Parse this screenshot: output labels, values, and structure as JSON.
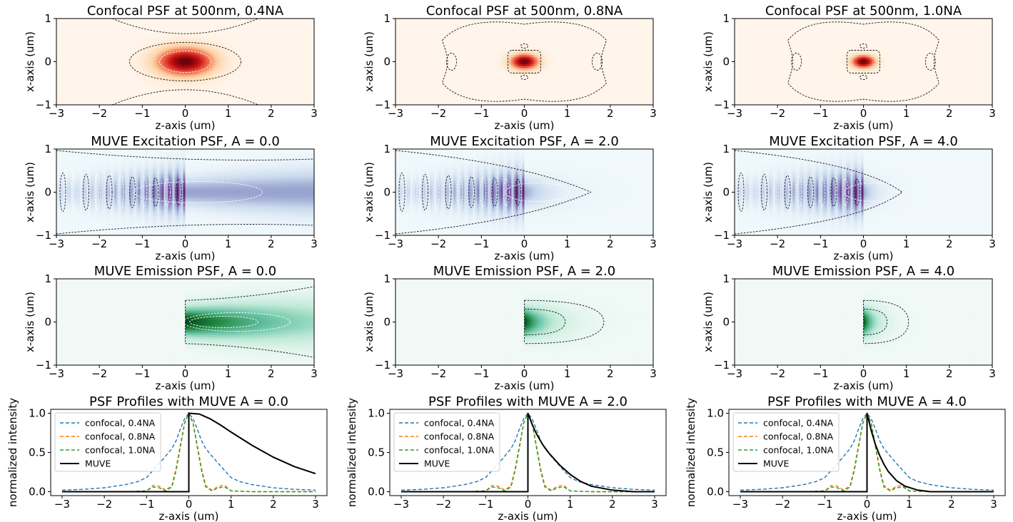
{
  "figure": {
    "rows": [
      {
        "kind": "heatmap",
        "colormap": "reds",
        "titles": [
          "Confocal PSF at 500nm, 0.4NA",
          "Confocal PSF at 500nm, 0.8NA",
          "Confocal PSF at 500nm, 1.0NA"
        ],
        "xlabel": "z-axis (um)",
        "ylabel": "x-axis (um)"
      },
      {
        "kind": "heatmap",
        "colormap": "purples",
        "titles": [
          "MUVE Excitation PSF, A = 0.0",
          "MUVE Excitation PSF, A = 2.0",
          "MUVE Excitation PSF, A = 4.0"
        ],
        "xlabel": "z-axis (um)",
        "ylabel": "x-axis (um)"
      },
      {
        "kind": "heatmap",
        "colormap": "greens",
        "titles": [
          "MUVE Emission PSF, A = 0.0",
          "MUVE Emission PSF, A = 2.0",
          "MUVE Emission PSF, A = 4.0"
        ],
        "xlabel": "z-axis (um)",
        "ylabel": "x-axis (um)"
      },
      {
        "kind": "line",
        "titles": [
          "PSF Profiles with MUVE A = 0.0",
          "PSF Profiles with MUVE A = 2.0",
          "PSF Profiles with MUVE A = 4.0"
        ],
        "xlabel": "z-axis (um)",
        "ylabel": "normalized intensity"
      }
    ],
    "colors": {
      "confocal_04": "#1f77b4",
      "confocal_08": "#ff7f0e",
      "confocal_10": "#2ca02c",
      "muve": "#000000"
    }
  },
  "chart_data": [
    {
      "type": "heatmap",
      "panel": "r0c0",
      "title": "Confocal PSF at 500nm, 0.4NA",
      "xlabel": "z-axis (um)",
      "ylabel": "x-axis (um)",
      "xlim": [
        -3,
        3
      ],
      "ylim": [
        -1,
        1
      ],
      "xticks": [
        -3,
        -2,
        -1,
        0,
        1,
        2,
        3
      ],
      "yticks": [
        -1,
        0,
        1
      ],
      "peak": [
        0,
        0
      ],
      "colormap": "reds"
    },
    {
      "type": "heatmap",
      "panel": "r0c1",
      "title": "Confocal PSF at 500nm, 0.8NA",
      "xlabel": "z-axis (um)",
      "ylabel": "x-axis (um)",
      "xlim": [
        -3,
        3
      ],
      "ylim": [
        -1,
        1
      ],
      "xticks": [
        -3,
        -2,
        -1,
        0,
        1,
        2,
        3
      ],
      "yticks": [
        -1,
        0,
        1
      ],
      "peak": [
        0,
        0
      ],
      "colormap": "reds"
    },
    {
      "type": "heatmap",
      "panel": "r0c2",
      "title": "Confocal PSF at 500nm, 1.0NA",
      "xlabel": "z-axis (um)",
      "ylabel": "x-axis (um)",
      "xlim": [
        -3,
        3
      ],
      "ylim": [
        -1,
        1
      ],
      "xticks": [
        -3,
        -2,
        -1,
        0,
        1,
        2,
        3
      ],
      "yticks": [
        -1,
        0,
        1
      ],
      "peak": [
        0,
        0
      ],
      "colormap": "reds"
    },
    {
      "type": "heatmap",
      "panel": "r1c0",
      "title": "MUVE Excitation PSF, A = 0.0",
      "xlabel": "z-axis (um)",
      "ylabel": "x-axis (um)",
      "xlim": [
        -3,
        3
      ],
      "ylim": [
        -1,
        1
      ],
      "xticks": [
        -3,
        -2,
        -1,
        0,
        1,
        2,
        3
      ],
      "yticks": [
        -1,
        0,
        1
      ],
      "A": 0.0,
      "colormap": "purples"
    },
    {
      "type": "heatmap",
      "panel": "r1c1",
      "title": "MUVE Excitation PSF, A = 2.0",
      "xlabel": "z-axis (um)",
      "ylabel": "x-axis (um)",
      "xlim": [
        -3,
        3
      ],
      "ylim": [
        -1,
        1
      ],
      "xticks": [
        -3,
        -2,
        -1,
        0,
        1,
        2,
        3
      ],
      "yticks": [
        -1,
        0,
        1
      ],
      "A": 2.0,
      "colormap": "purples"
    },
    {
      "type": "heatmap",
      "panel": "r1c2",
      "title": "MUVE Excitation PSF, A = 4.0",
      "xlabel": "z-axis (um)",
      "ylabel": "x-axis (um)",
      "xlim": [
        -3,
        3
      ],
      "ylim": [
        -1,
        1
      ],
      "xticks": [
        -3,
        -2,
        -1,
        0,
        1,
        2,
        3
      ],
      "yticks": [
        -1,
        0,
        1
      ],
      "A": 4.0,
      "colormap": "purples"
    },
    {
      "type": "heatmap",
      "panel": "r2c0",
      "title": "MUVE Emission PSF, A = 0.0",
      "xlabel": "z-axis (um)",
      "ylabel": "x-axis (um)",
      "xlim": [
        -3,
        3
      ],
      "ylim": [
        -1,
        1
      ],
      "xticks": [
        -3,
        -2,
        -1,
        0,
        1,
        2,
        3
      ],
      "yticks": [
        -1,
        0,
        1
      ],
      "A": 0.0,
      "colormap": "greens"
    },
    {
      "type": "heatmap",
      "panel": "r2c1",
      "title": "MUVE Emission PSF, A = 2.0",
      "xlabel": "z-axis (um)",
      "ylabel": "x-axis (um)",
      "xlim": [
        -3,
        3
      ],
      "ylim": [
        -1,
        1
      ],
      "xticks": [
        -3,
        -2,
        -1,
        0,
        1,
        2,
        3
      ],
      "yticks": [
        -1,
        0,
        1
      ],
      "A": 2.0,
      "colormap": "greens"
    },
    {
      "type": "heatmap",
      "panel": "r2c2",
      "title": "MUVE Emission PSF, A = 4.0",
      "xlabel": "z-axis (um)",
      "ylabel": "x-axis (um)",
      "xlim": [
        -3,
        3
      ],
      "ylim": [
        -1,
        1
      ],
      "xticks": [
        -3,
        -2,
        -1,
        0,
        1,
        2,
        3
      ],
      "yticks": [
        -1,
        0,
        1
      ],
      "A": 4.0,
      "colormap": "greens"
    },
    {
      "type": "line",
      "panel": "r3c0",
      "title": "PSF Profiles with MUVE A = 0.0",
      "xlabel": "z-axis (um)",
      "ylabel": "normalized intensity",
      "xlim": [
        -3,
        3
      ],
      "ylim": [
        0,
        1
      ],
      "xticks": [
        -3,
        -2,
        -1,
        0,
        1,
        2,
        3
      ],
      "yticks": [
        0.0,
        0.5,
        1.0
      ],
      "A": 0.0,
      "legend": "upper-left",
      "series": [
        {
          "name": "confocal, 0.4NA",
          "style": "dashed",
          "x": [
            -3,
            -2.5,
            -2,
            -1.5,
            -1.2,
            -1,
            -0.8,
            -0.6,
            -0.4,
            -0.3,
            -0.2,
            -0.1,
            0,
            0.1,
            0.2,
            0.3,
            0.4,
            0.6,
            0.8,
            1,
            1.2,
            1.5,
            2,
            2.5,
            3
          ],
          "values": [
            0.02,
            0.03,
            0.05,
            0.09,
            0.13,
            0.18,
            0.3,
            0.42,
            0.55,
            0.65,
            0.8,
            0.93,
            1.0,
            0.93,
            0.8,
            0.65,
            0.55,
            0.42,
            0.3,
            0.18,
            0.13,
            0.09,
            0.05,
            0.03,
            0.02
          ]
        },
        {
          "name": "confocal, 0.8NA",
          "style": "dashed",
          "x": [
            -3,
            -1.5,
            -1,
            -0.85,
            -0.7,
            -0.55,
            -0.4,
            -0.3,
            -0.2,
            -0.1,
            0,
            0.1,
            0.2,
            0.3,
            0.4,
            0.55,
            0.7,
            0.85,
            1,
            1.5,
            3
          ],
          "values": [
            0.0,
            0.0,
            0.01,
            0.08,
            0.07,
            0.02,
            0.08,
            0.3,
            0.6,
            0.88,
            1.0,
            0.88,
            0.6,
            0.3,
            0.08,
            0.02,
            0.07,
            0.08,
            0.01,
            0.0,
            0.0
          ]
        },
        {
          "name": "confocal, 1.0NA",
          "style": "dashed",
          "x": [
            -3,
            -1.5,
            -1,
            -0.85,
            -0.7,
            -0.55,
            -0.4,
            -0.3,
            -0.2,
            -0.1,
            0,
            0.1,
            0.2,
            0.3,
            0.4,
            0.55,
            0.7,
            0.85,
            1,
            1.5,
            3
          ],
          "values": [
            0.0,
            0.0,
            0.01,
            0.06,
            0.05,
            0.01,
            0.06,
            0.27,
            0.57,
            0.87,
            1.0,
            0.87,
            0.57,
            0.27,
            0.06,
            0.01,
            0.05,
            0.06,
            0.01,
            0.0,
            0.0
          ]
        },
        {
          "name": "MUVE",
          "style": "solid",
          "x": [
            -3,
            0,
            0,
            0.25,
            0.5,
            0.75,
            1,
            1.5,
            2,
            2.5,
            3
          ],
          "values": [
            0.0,
            0.0,
            1.0,
            0.99,
            0.93,
            0.85,
            0.76,
            0.59,
            0.44,
            0.32,
            0.23
          ]
        }
      ]
    },
    {
      "type": "line",
      "panel": "r3c1",
      "title": "PSF Profiles with MUVE A = 2.0",
      "xlabel": "z-axis (um)",
      "ylabel": "normalized intensity",
      "xlim": [
        -3,
        3
      ],
      "ylim": [
        0,
        1
      ],
      "xticks": [
        -3,
        -2,
        -1,
        0,
        1,
        2,
        3
      ],
      "yticks": [
        0.0,
        0.5,
        1.0
      ],
      "A": 2.0,
      "legend": "upper-left",
      "series": [
        {
          "name": "confocal, 0.4NA",
          "style": "dashed",
          "x": [
            -3,
            -2.5,
            -2,
            -1.5,
            -1.2,
            -1,
            -0.8,
            -0.6,
            -0.4,
            -0.3,
            -0.2,
            -0.1,
            0,
            0.1,
            0.2,
            0.3,
            0.4,
            0.6,
            0.8,
            1,
            1.2,
            1.5,
            2,
            2.5,
            3
          ],
          "values": [
            0.02,
            0.03,
            0.05,
            0.09,
            0.13,
            0.18,
            0.3,
            0.42,
            0.55,
            0.65,
            0.8,
            0.93,
            1.0,
            0.93,
            0.8,
            0.65,
            0.55,
            0.42,
            0.3,
            0.18,
            0.13,
            0.09,
            0.05,
            0.03,
            0.02
          ]
        },
        {
          "name": "confocal, 0.8NA",
          "style": "dashed",
          "x": [
            -3,
            -1.5,
            -1,
            -0.85,
            -0.7,
            -0.55,
            -0.4,
            -0.3,
            -0.2,
            -0.1,
            0,
            0.1,
            0.2,
            0.3,
            0.4,
            0.55,
            0.7,
            0.85,
            1,
            1.5,
            3
          ],
          "values": [
            0.0,
            0.0,
            0.01,
            0.08,
            0.07,
            0.02,
            0.08,
            0.3,
            0.6,
            0.88,
            1.0,
            0.88,
            0.6,
            0.3,
            0.08,
            0.02,
            0.07,
            0.08,
            0.01,
            0.0,
            0.0
          ]
        },
        {
          "name": "confocal, 1.0NA",
          "style": "dashed",
          "x": [
            -3,
            -1.5,
            -1,
            -0.85,
            -0.7,
            -0.55,
            -0.4,
            -0.3,
            -0.2,
            -0.1,
            0,
            0.1,
            0.2,
            0.3,
            0.4,
            0.55,
            0.7,
            0.85,
            1,
            1.5,
            3
          ],
          "values": [
            0.0,
            0.0,
            0.01,
            0.06,
            0.05,
            0.01,
            0.06,
            0.27,
            0.57,
            0.87,
            1.0,
            0.87,
            0.57,
            0.27,
            0.06,
            0.01,
            0.05,
            0.06,
            0.01,
            0.0,
            0.0
          ]
        },
        {
          "name": "MUVE",
          "style": "solid",
          "x": [
            -3,
            0,
            0,
            0.1,
            0.2,
            0.35,
            0.5,
            0.75,
            1,
            1.25,
            1.5,
            2,
            2.5,
            3
          ],
          "values": [
            0.0,
            0.0,
            1.0,
            0.86,
            0.74,
            0.6,
            0.49,
            0.34,
            0.22,
            0.13,
            0.07,
            0.02,
            0.0,
            0.0
          ]
        }
      ]
    },
    {
      "type": "line",
      "panel": "r3c2",
      "title": "PSF Profiles with MUVE A = 4.0",
      "xlabel": "z-axis (um)",
      "ylabel": "normalized intensity",
      "xlim": [
        -3,
        3
      ],
      "ylim": [
        0,
        1
      ],
      "xticks": [
        -3,
        -2,
        -1,
        0,
        1,
        2,
        3
      ],
      "yticks": [
        0.0,
        0.5,
        1.0
      ],
      "A": 4.0,
      "legend": "upper-left",
      "series": [
        {
          "name": "confocal, 0.4NA",
          "style": "dashed",
          "x": [
            -3,
            -2.5,
            -2,
            -1.5,
            -1.2,
            -1,
            -0.8,
            -0.6,
            -0.4,
            -0.3,
            -0.2,
            -0.1,
            0,
            0.1,
            0.2,
            0.3,
            0.4,
            0.6,
            0.8,
            1,
            1.2,
            1.5,
            2,
            2.5,
            3
          ],
          "values": [
            0.02,
            0.03,
            0.05,
            0.09,
            0.13,
            0.18,
            0.3,
            0.42,
            0.55,
            0.65,
            0.8,
            0.93,
            1.0,
            0.93,
            0.8,
            0.65,
            0.55,
            0.42,
            0.3,
            0.18,
            0.13,
            0.09,
            0.05,
            0.03,
            0.02
          ]
        },
        {
          "name": "confocal, 0.8NA",
          "style": "dashed",
          "x": [
            -3,
            -1.5,
            -1,
            -0.85,
            -0.7,
            -0.55,
            -0.4,
            -0.3,
            -0.2,
            -0.1,
            0,
            0.1,
            0.2,
            0.3,
            0.4,
            0.55,
            0.7,
            0.85,
            1,
            1.5,
            3
          ],
          "values": [
            0.0,
            0.0,
            0.01,
            0.08,
            0.07,
            0.02,
            0.08,
            0.3,
            0.6,
            0.88,
            1.0,
            0.88,
            0.6,
            0.3,
            0.08,
            0.02,
            0.07,
            0.08,
            0.01,
            0.0,
            0.0
          ]
        },
        {
          "name": "confocal, 1.0NA",
          "style": "dashed",
          "x": [
            -3,
            -1.5,
            -1,
            -0.85,
            -0.7,
            -0.55,
            -0.4,
            -0.3,
            -0.2,
            -0.1,
            0,
            0.1,
            0.2,
            0.3,
            0.4,
            0.55,
            0.7,
            0.85,
            1,
            1.5,
            3
          ],
          "values": [
            0.0,
            0.0,
            0.01,
            0.06,
            0.05,
            0.01,
            0.06,
            0.27,
            0.57,
            0.87,
            1.0,
            0.87,
            0.57,
            0.27,
            0.06,
            0.01,
            0.05,
            0.06,
            0.01,
            0.0,
            0.0
          ]
        },
        {
          "name": "MUVE",
          "style": "solid",
          "x": [
            -3,
            0,
            0,
            0.1,
            0.2,
            0.3,
            0.4,
            0.5,
            0.7,
            0.9,
            1.2,
            1.5,
            2,
            3
          ],
          "values": [
            0.0,
            0.0,
            1.0,
            0.78,
            0.6,
            0.46,
            0.35,
            0.26,
            0.14,
            0.07,
            0.02,
            0.0,
            0.0,
            0.0
          ]
        }
      ]
    }
  ]
}
